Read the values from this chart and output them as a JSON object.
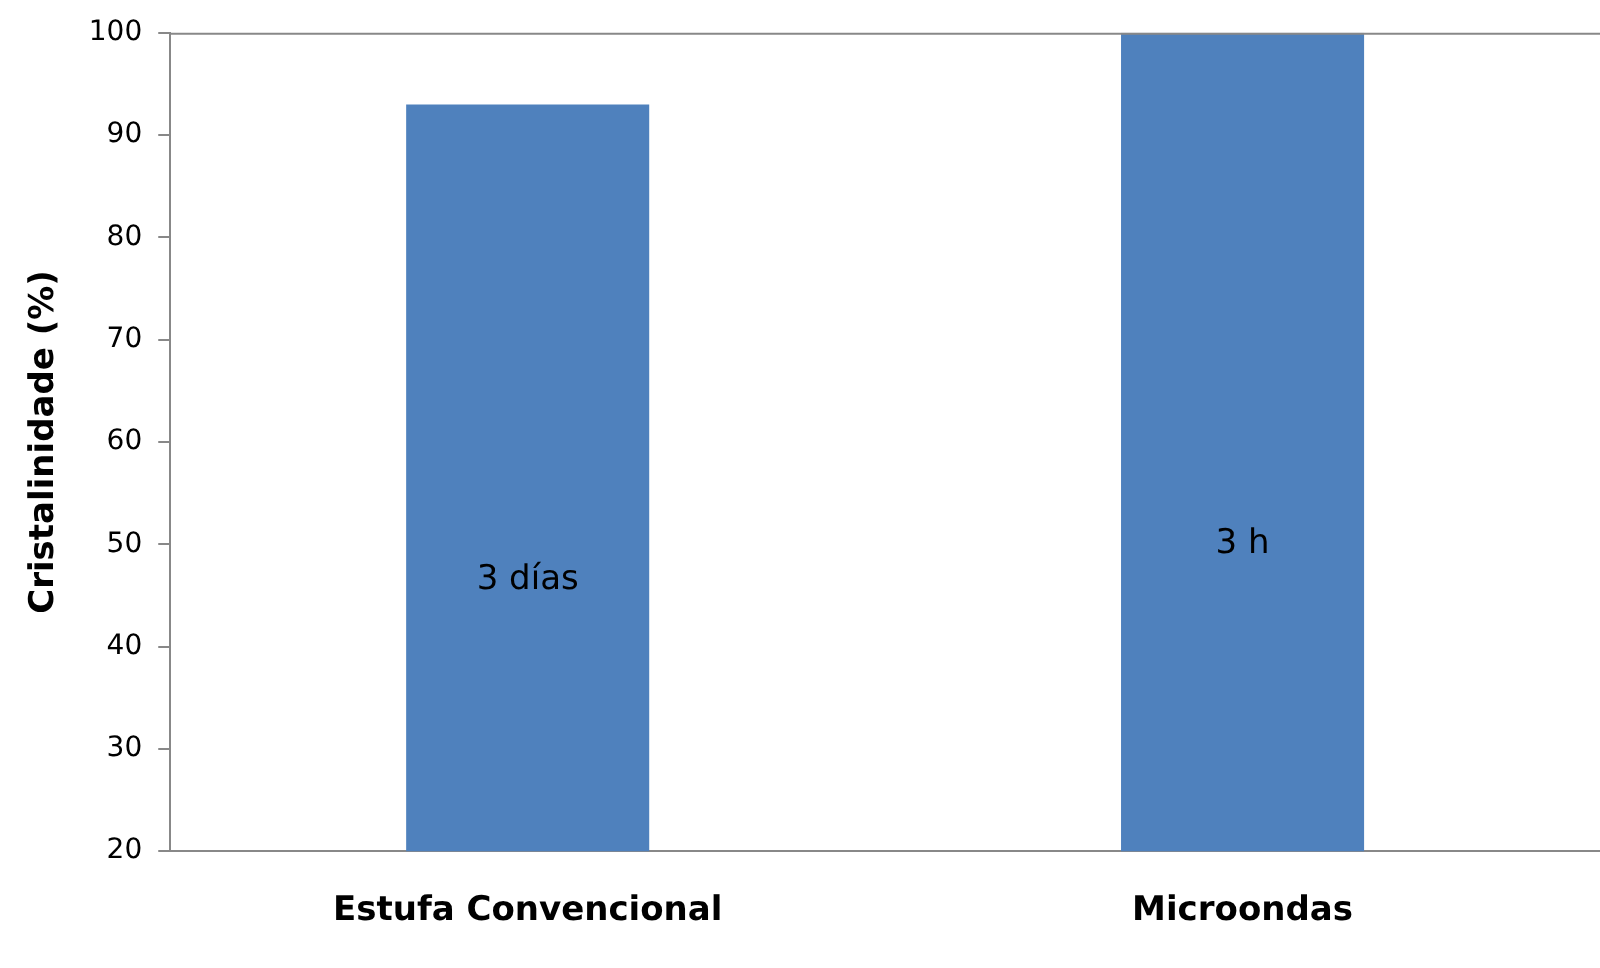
{
  "chart_data": {
    "type": "bar",
    "ylabel": "Cristalinidade (%)",
    "categories": [
      "Estufa Convencional",
      "Microondas"
    ],
    "values": [
      93,
      100
    ],
    "color": "#4f81bd",
    "ylim": [
      20,
      100
    ],
    "yticks": [
      20,
      30,
      40,
      50,
      60,
      70,
      80,
      90,
      100
    ],
    "grid": false,
    "legend": false,
    "annotations": [
      "3 días",
      "3 h"
    ]
  }
}
